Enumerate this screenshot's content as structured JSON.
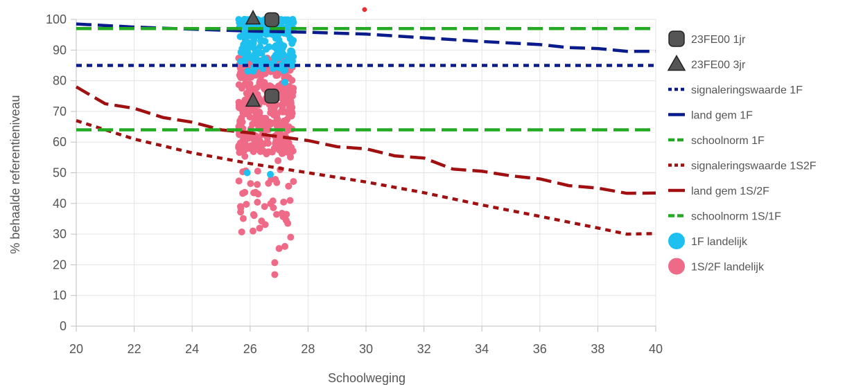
{
  "chart_data": {
    "type": "scatter",
    "title": "",
    "xlabel": "Schoolweging",
    "ylabel": "% behaalde referentieniveau",
    "xlim": [
      20,
      40
    ],
    "ylim": [
      0,
      100
    ],
    "x_ticks": [
      20,
      22,
      24,
      26,
      28,
      30,
      32,
      34,
      36,
      38,
      40
    ],
    "y_ticks": [
      0,
      10,
      20,
      30,
      40,
      50,
      60,
      70,
      80,
      90,
      100
    ],
    "grid": true,
    "legend_position": "right",
    "legend": [
      {
        "label": "23FE00 1jr",
        "marker": "rounded-square",
        "color": "#555555"
      },
      {
        "label": "23FE00 3jr",
        "marker": "triangle",
        "color": "#555555"
      },
      {
        "label": "signaleringswaarde 1F",
        "marker": "dotted-line",
        "color": "#0a1c8c"
      },
      {
        "label": "land gem  1F",
        "marker": "line",
        "color": "#0a1c8c"
      },
      {
        "label": "schoolnorm 1F",
        "marker": "dashed-line",
        "color": "#22aa22"
      },
      {
        "label": "signaleringswaarde 1S2F",
        "marker": "dotted-line",
        "color": "#a01010"
      },
      {
        "label": "land gem  1S/2F",
        "marker": "line",
        "color": "#a01010"
      },
      {
        "label": "schoolnorm 1S/1F",
        "marker": "dashed-line",
        "color": "#22aa22"
      },
      {
        "label": "1F landelijk",
        "marker": "circle",
        "color": "#1ec0ef"
      },
      {
        "label": "1S/2F landelijk",
        "marker": "circle",
        "color": "#ee6a87"
      }
    ],
    "lines": [
      {
        "name": "signaleringswaarde 1F",
        "color": "#0a1c8c",
        "style": "dotted",
        "x": [
          20,
          40
        ],
        "y": [
          85,
          85
        ]
      },
      {
        "name": "land gem  1F",
        "color": "#0a1c8c",
        "style": "dashed",
        "x": [
          20,
          22,
          24,
          26,
          28,
          30,
          32,
          34,
          36,
          37,
          38,
          39,
          40
        ],
        "y": [
          98.5,
          97.5,
          96.8,
          96.2,
          95.8,
          95.2,
          94,
          92.8,
          91.8,
          90.8,
          90.5,
          89.6,
          89.6
        ]
      },
      {
        "name": "schoolnorm 1F",
        "color": "#22aa22",
        "style": "dashed",
        "x": [
          20,
          40
        ],
        "y": [
          97,
          97
        ]
      },
      {
        "name": "signaleringswaarde 1S2F",
        "color": "#a01010",
        "style": "dotted",
        "x": [
          20,
          22,
          24,
          26,
          28,
          30,
          32,
          34,
          36,
          38,
          39,
          40
        ],
        "y": [
          67,
          61,
          56.5,
          53,
          50,
          47,
          43.5,
          39.5,
          35.8,
          32,
          30,
          30.2
        ]
      },
      {
        "name": "land gem  1S/2F",
        "color": "#a01010",
        "style": "dashed",
        "x": [
          20,
          21,
          22,
          23,
          24,
          25,
          26,
          27,
          28,
          29,
          30,
          31,
          32,
          33,
          34,
          35,
          36,
          37,
          38,
          39,
          40
        ],
        "y": [
          78,
          72.5,
          71,
          68,
          66.5,
          64,
          63,
          61.8,
          60.5,
          58.5,
          57.8,
          55.5,
          54.8,
          51.2,
          50.5,
          49,
          48,
          45.8,
          45,
          43.3,
          43.4
        ]
      },
      {
        "name": "schoolnorm 1S/1F",
        "color": "#22aa22",
        "style": "dashed",
        "x": [
          20,
          40
        ],
        "y": [
          64,
          64
        ]
      }
    ],
    "school_points": [
      {
        "name": "23FE00 1jr",
        "marker": "rounded-square",
        "points": [
          [
            26.75,
            99.9
          ],
          [
            26.75,
            75
          ]
        ]
      },
      {
        "name": "23FE00 3jr",
        "marker": "triangle",
        "points": [
          [
            26.1,
            100.3
          ],
          [
            26.1,
            73.5
          ]
        ]
      }
    ],
    "outlier_points": [
      [
        29.95,
        103.2,
        "#e83030"
      ]
    ],
    "scatter_clouds": [
      {
        "name": "1F landelijk",
        "color": "#1ec0ef",
        "x_range": [
          25.6,
          27.5
        ],
        "y_band": [
          83,
          100
        ],
        "count": 230,
        "extra_points": [
          [
            25.9,
            50
          ],
          [
            26.7,
            49.5
          ],
          [
            27.2,
            79.5
          ],
          [
            26.3,
            85
          ]
        ]
      },
      {
        "name": "1S/2F landelijk",
        "color": "#ee6a87",
        "x_range": [
          25.6,
          27.5
        ],
        "y_band": [
          30,
          88
        ],
        "count": 420,
        "extra_points": [
          [
            26.85,
            16.8
          ],
          [
            26.85,
            20.7
          ],
          [
            27.0,
            25.3
          ],
          [
            27.2,
            26
          ],
          [
            26.1,
            31
          ],
          [
            27.4,
            29
          ],
          [
            27.3,
            33.5
          ],
          [
            27.1,
            36.8
          ],
          [
            26.5,
            39
          ]
        ]
      }
    ]
  }
}
